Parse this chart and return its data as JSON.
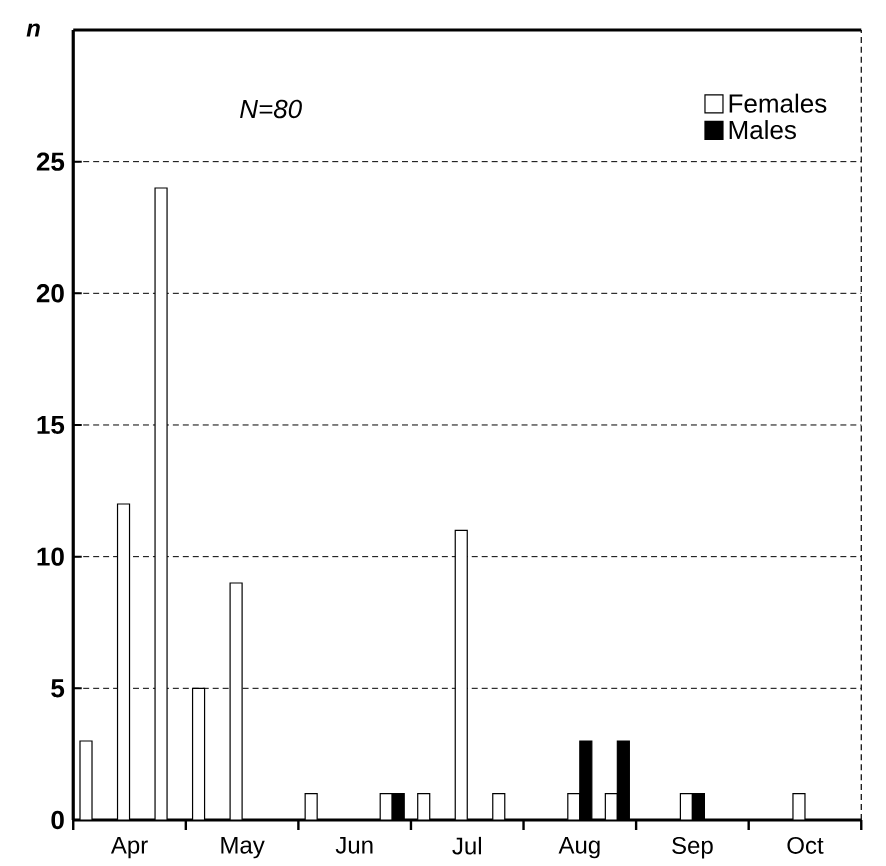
{
  "chart_data": {
    "type": "bar",
    "ylabel": "n",
    "categories": [
      null,
      "Apr",
      null,
      null,
      "May",
      null,
      null,
      "Jun",
      null,
      null,
      "Jul",
      null,
      null,
      "Aug",
      null,
      null,
      "Sep",
      null,
      null,
      "Oct",
      null
    ],
    "series": [
      {
        "name": "Females",
        "color": "#ffffff",
        "values": [
          3,
          12,
          24,
          5,
          9,
          null,
          1,
          null,
          1,
          1,
          11,
          1,
          null,
          1,
          1,
          null,
          1,
          null,
          null,
          1,
          null
        ]
      },
      {
        "name": "Males",
        "color": "#000000",
        "values": [
          null,
          null,
          null,
          null,
          null,
          null,
          null,
          null,
          1,
          null,
          null,
          null,
          null,
          3,
          3,
          null,
          1,
          null,
          null,
          null,
          null
        ]
      }
    ],
    "ylim": [
      0,
      30
    ],
    "yticks": [
      0,
      5,
      10,
      15,
      20,
      25
    ],
    "grid": "y",
    "legend": "top right",
    "annotations": [
      "N=80"
    ]
  }
}
